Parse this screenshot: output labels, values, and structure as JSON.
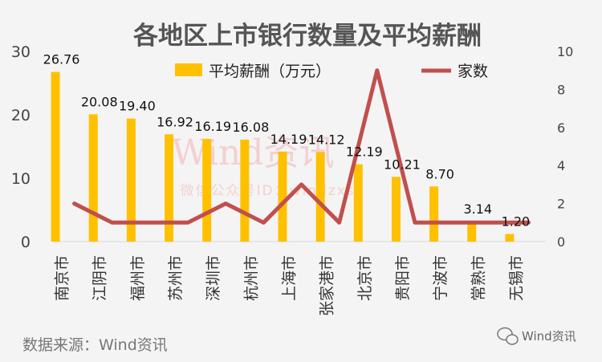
{
  "chart_data": {
    "type": "bar+line",
    "title": "各地区上市银行数量及平均薪酬",
    "categories": [
      "南京市",
      "江阴市",
      "福州市",
      "苏州市",
      "深圳市",
      "杭州市",
      "上海市",
      "张家港市",
      "北京市",
      "贵阳市",
      "宁波市",
      "常熟市",
      "无锡市"
    ],
    "series": [
      {
        "name": "平均薪酬（万元）",
        "type": "bar",
        "axis": "left",
        "color": "#FFC000",
        "values": [
          26.76,
          20.08,
          19.4,
          16.92,
          16.19,
          16.08,
          14.19,
          14.12,
          12.19,
          10.21,
          8.7,
          3.14,
          1.2
        ],
        "labels": [
          "26.76",
          "20.08",
          "19.40",
          "16.92",
          "16.19",
          "16.08",
          "14.19",
          "14.12",
          "12.19",
          "10.21",
          "8.70",
          "3.14",
          "1.20"
        ]
      },
      {
        "name": "家数",
        "type": "line",
        "axis": "right",
        "color": "#C0504D",
        "values": [
          2,
          1,
          1,
          1,
          2,
          1,
          3,
          1,
          9,
          1,
          1,
          1,
          1
        ]
      }
    ],
    "y_left": {
      "ylim": [
        0,
        30
      ],
      "ticks": [
        "0",
        "10",
        "20",
        "30"
      ]
    },
    "y_right": {
      "ylim": [
        0,
        10
      ],
      "ticks": [
        "0",
        "2",
        "4",
        "6",
        "8",
        "10"
      ]
    },
    "legend_placement": "top",
    "grid": false
  },
  "watermark": {
    "big": "Wind资讯",
    "small": "微信公众号ID：windzxsh"
  },
  "footer": {
    "source": "数据来源：Wind资讯",
    "brand": "Wind资讯"
  },
  "colors": {
    "background": "#F4F4F4",
    "title": "#555555"
  }
}
